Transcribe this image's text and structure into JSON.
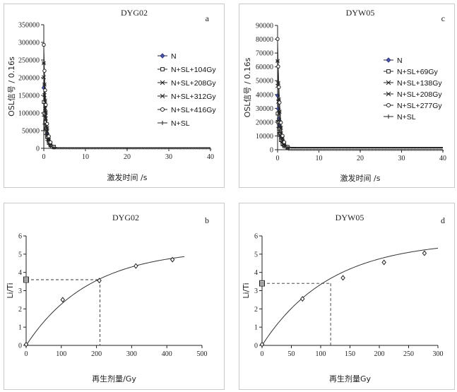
{
  "chart_data": [
    {
      "type": "line",
      "title": "DYG02",
      "panel_label": "a",
      "xlabel": "激发时间 /s",
      "ylabel": "OSL信号 / 0.16s",
      "xlim": [
        0,
        40
      ],
      "ylim": [
        0,
        350000
      ],
      "xticks": [
        0,
        10,
        20,
        30,
        40
      ],
      "yticks": [
        0,
        50000,
        100000,
        150000,
        200000,
        250000,
        300000,
        350000
      ],
      "grid": false,
      "legend_position": "right",
      "series": [
        {
          "name": "N",
          "marker": "diamond-filled",
          "peak": 170000
        },
        {
          "name": "N+SL+104Gy",
          "marker": "square",
          "peak": 130000
        },
        {
          "name": "N+SL+208Gy",
          "marker": "x",
          "peak": 200000
        },
        {
          "name": "N+SL+312Gy",
          "marker": "asterisk",
          "peak": 240000
        },
        {
          "name": "N+SL+416Gy",
          "marker": "circle",
          "peak": 292000
        },
        {
          "name": "N+SL",
          "marker": "plus",
          "peak": 90000
        }
      ]
    },
    {
      "type": "line",
      "title": "DYW05",
      "panel_label": "c",
      "xlabel": "激发时间 /s",
      "ylabel": "OSL信号 / 0.16s",
      "xlim": [
        0,
        40
      ],
      "ylim": [
        0,
        90000
      ],
      "xticks": [
        0,
        10,
        20,
        30,
        40
      ],
      "yticks": [
        0,
        10000,
        20000,
        30000,
        40000,
        50000,
        60000,
        70000,
        80000,
        90000
      ],
      "grid": false,
      "legend_position": "right",
      "series": [
        {
          "name": "N",
          "marker": "diamond-filled",
          "peak": 38000
        },
        {
          "name": "N+SL+69Gy",
          "marker": "square",
          "peak": 25000
        },
        {
          "name": "N+SL+138Gy",
          "marker": "x",
          "peak": 45000
        },
        {
          "name": "N+SL+208Gy",
          "marker": "asterisk",
          "peak": 63000
        },
        {
          "name": "N+SL+277Gy",
          "marker": "circle",
          "peak": 79000
        },
        {
          "name": "N+SL",
          "marker": "plus",
          "peak": 20000
        }
      ]
    },
    {
      "type": "scatter",
      "title": "DYG02",
      "panel_label": "b",
      "xlabel": "再生剂量/Gy",
      "ylabel": "Li/Ti",
      "xlim": [
        0,
        500
      ],
      "ylim": [
        0,
        6
      ],
      "xticks": [
        0,
        100,
        200,
        300,
        400,
        500
      ],
      "yticks": [
        0,
        1,
        2,
        3,
        4,
        5,
        6
      ],
      "grid": false,
      "points": [
        [
          0,
          0.05
        ],
        [
          104,
          2.5
        ],
        [
          208,
          3.55
        ],
        [
          312,
          4.35
        ],
        [
          416,
          4.7
        ]
      ],
      "natural": {
        "x": 0,
        "y": 3.6,
        "spread": [
          3.45,
          3.75
        ]
      },
      "fit": {
        "model": "saturating-exponential",
        "ymax": 5.3,
        "d0": 180,
        "xmax": 450
      },
      "de": {
        "x": 210,
        "y": 3.6
      }
    },
    {
      "type": "scatter",
      "title": "DYW05",
      "panel_label": "d",
      "xlabel": "再生剂量Gy",
      "ylabel": "Li/Ti",
      "xlim": [
        0,
        300
      ],
      "ylim": [
        0,
        6
      ],
      "xticks": [
        0,
        50,
        100,
        150,
        200,
        250,
        300
      ],
      "yticks": [
        0,
        1,
        2,
        3,
        4,
        5,
        6
      ],
      "grid": false,
      "points": [
        [
          0,
          0.05
        ],
        [
          69,
          2.55
        ],
        [
          138,
          3.7
        ],
        [
          208,
          4.55
        ],
        [
          277,
          5.05
        ]
      ],
      "natural": {
        "x": 0,
        "y": 3.4,
        "spread": [
          3.25,
          3.55
        ]
      },
      "fit": {
        "model": "saturating-exponential",
        "ymax": 5.75,
        "d0": 115,
        "xmax": 300
      },
      "de": {
        "x": 117,
        "y": 3.4
      }
    }
  ]
}
